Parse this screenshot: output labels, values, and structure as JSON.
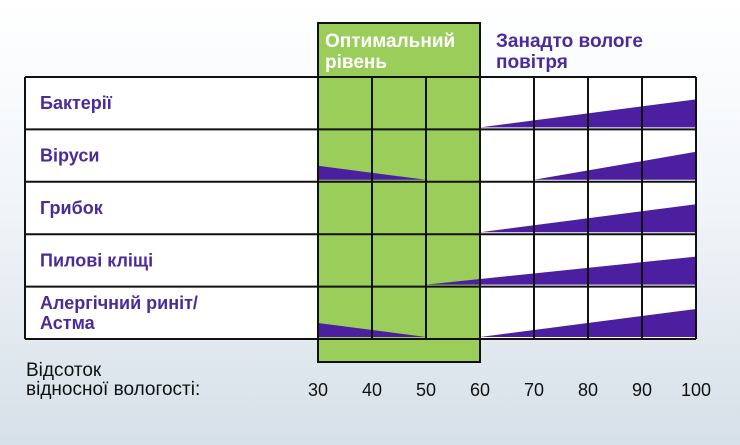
{
  "chart_data": {
    "type": "area",
    "categories": [
      "Бактерії",
      "Віруси",
      "Грибок",
      "Пилові кліщі",
      "Алергічний риніт/\nАстма"
    ],
    "x_ticks": [
      30,
      40,
      50,
      60,
      70,
      80,
      90,
      100
    ],
    "xlim": [
      30,
      100
    ],
    "xlabel": "Відсоток\nвідносної вологості:",
    "zones": [
      {
        "label": "Оптимальний\nрівень",
        "from": 30,
        "to": 60,
        "color": "#9acd5a"
      },
      {
        "label": "Занадто вологе\nповітря",
        "from": 60,
        "to": 100,
        "color": "#ffffff"
      }
    ],
    "series": [
      {
        "category": "Бактерії",
        "points": [
          [
            60,
            0
          ],
          [
            100,
            1
          ]
        ]
      },
      {
        "category": "Віруси",
        "points": [
          [
            30,
            0.5
          ],
          [
            50,
            0
          ],
          [
            70,
            0
          ],
          [
            100,
            1
          ]
        ]
      },
      {
        "category": "Грибок",
        "points": [
          [
            60,
            0
          ],
          [
            100,
            1
          ]
        ]
      },
      {
        "category": "Пилові кліщі",
        "points": [
          [
            50,
            0
          ],
          [
            100,
            1
          ]
        ]
      },
      {
        "category": "Алергічний риніт/\nАстма",
        "points": [
          [
            30,
            0.5
          ],
          [
            50,
            0
          ],
          [
            60,
            0
          ],
          [
            100,
            1
          ]
        ]
      }
    ],
    "fill_color": "#4b1fa0",
    "grid": true
  }
}
